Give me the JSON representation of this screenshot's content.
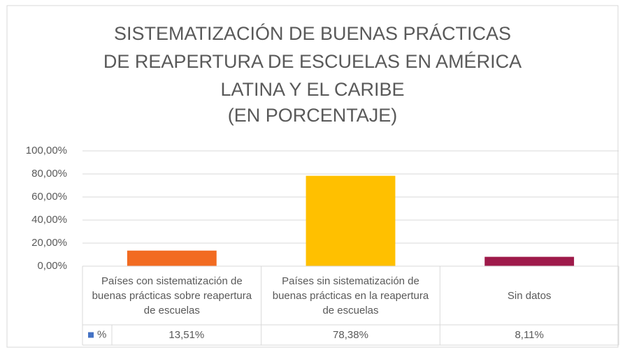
{
  "chart_data": {
    "type": "bar",
    "title": [
      "SISTEMATIZACIÓN DE BUENAS PRÁCTICAS",
      "DE REAPERTURA DE ESCUELAS EN AMÉRICA",
      "LATINA Y EL CARIBE"
    ],
    "subtitle": "(EN PORCENTAJE)",
    "categories": [
      "Países con sistematización de buenas prácticas sobre reapertura de escuelas",
      "Países sin sistematización de buenas prácticas en la reapertura de escuelas",
      "Sin datos"
    ],
    "series": [
      {
        "name": "%",
        "color": "#4472c4",
        "point_colors": [
          "#f26b21",
          "#ffc000",
          "#9e1a4a"
        ],
        "values": [
          13.51,
          78.38,
          8.11
        ],
        "value_labels": [
          "13,51%",
          "78,38%",
          "8,11%"
        ]
      }
    ],
    "ylim": [
      0,
      100
    ],
    "yticks": [
      {
        "value": 0,
        "label": "0,00%"
      },
      {
        "value": 20,
        "label": "20,00%"
      },
      {
        "value": 40,
        "label": "40,00%"
      },
      {
        "value": 60,
        "label": "60,00%"
      },
      {
        "value": 80,
        "label": "80,00%"
      },
      {
        "value": 100,
        "label": "100,00%"
      }
    ],
    "grid": true,
    "data_table": true
  }
}
